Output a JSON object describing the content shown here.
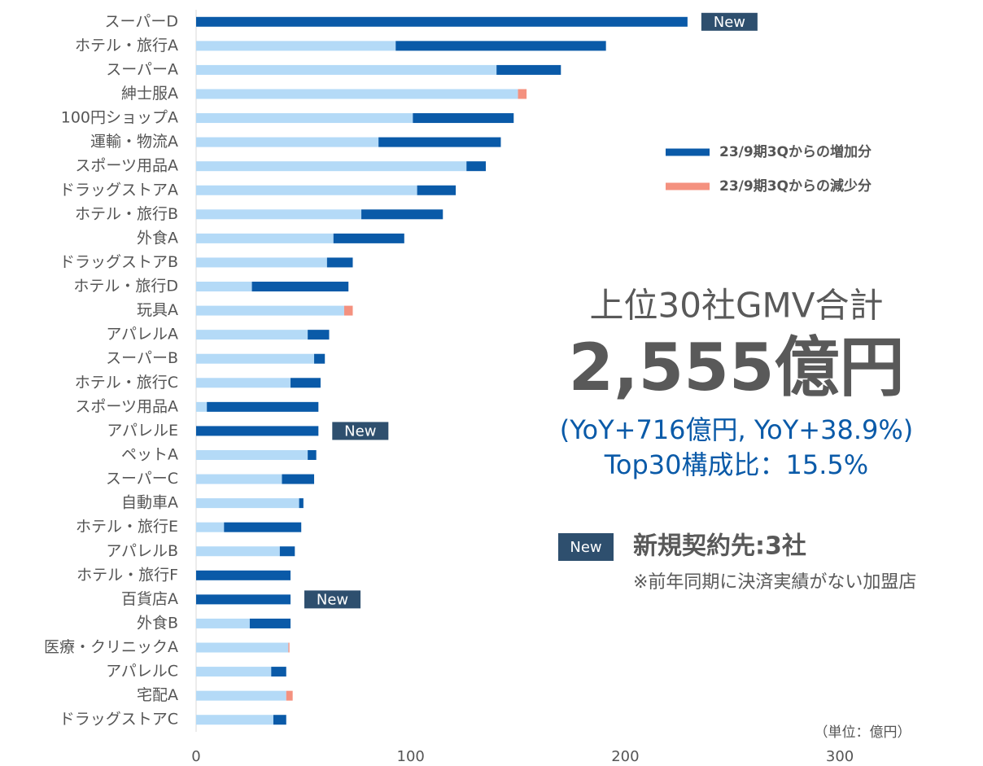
{
  "chart_data": {
    "type": "stacked_barh",
    "categories": [
      "スーパーD",
      "ホテル・旅行A",
      "スーパーA",
      "紳士服A",
      "100円ショップA",
      "運輸・物流A",
      "スポーツ用品A",
      "ドラッグストアA",
      "ホテル・旅行B",
      "外食A",
      "ドラッグストアB",
      "ホテル・旅行D",
      "玩具A",
      "アパレルA",
      "スーパーB",
      "ホテル・旅行C",
      "スポーツ用品A",
      "アパレルE",
      "ペットA",
      "スーパーC",
      "自動車A",
      "ホテル・旅行E",
      "アパレルB",
      "ホテル・旅行F",
      "百貨店A",
      "外食B",
      "医療・クリニックA",
      "アパレルC",
      "宅配A",
      "ドラッグストアC"
    ],
    "series": [
      {
        "color": "#b4daf7",
        "values": [
          0,
          93,
          140,
          150,
          101,
          85,
          126,
          103,
          77,
          64,
          61,
          26,
          69,
          52,
          55,
          44,
          5,
          0,
          52,
          40,
          48,
          13,
          39,
          0,
          0,
          25,
          43,
          35,
          42,
          36
        ]
      },
      {
        "name": "23/9期3Qからの増加分",
        "color": "#0a5aa8",
        "values": [
          229,
          98,
          30,
          0,
          47,
          57,
          9,
          18,
          38,
          33,
          12,
          45,
          0,
          10,
          5,
          14,
          52,
          57,
          4,
          15,
          2,
          36,
          7,
          44,
          44,
          19,
          0,
          7,
          0,
          6
        ]
      },
      {
        "name": "23/9期3Qからの減少分",
        "color": "#f4917f",
        "values": [
          0,
          0,
          0,
          4,
          0,
          0,
          0,
          0,
          0,
          0,
          0,
          0,
          4,
          0,
          0,
          0,
          0,
          0,
          0,
          0,
          0,
          0,
          0,
          0,
          0,
          0,
          0.5,
          0,
          3,
          0
        ]
      }
    ],
    "xlim": [
      0,
      350
    ],
    "xticks": [
      0,
      100,
      200,
      300
    ],
    "badges": {
      "text": "New",
      "categories": [
        0,
        17,
        24
      ]
    },
    "unit_label": "（単位：億円）",
    "headline": {
      "title": "上位30社GMV合計",
      "total": "2,555億円",
      "yoy": "(YoY+716億円, YoY+38.9%)",
      "share": "Top30構成比：15.5%"
    },
    "new_note": {
      "badge": "New",
      "title": "新規契約先:3社",
      "note": "※前年同期に決済実績がない加盟店"
    }
  }
}
